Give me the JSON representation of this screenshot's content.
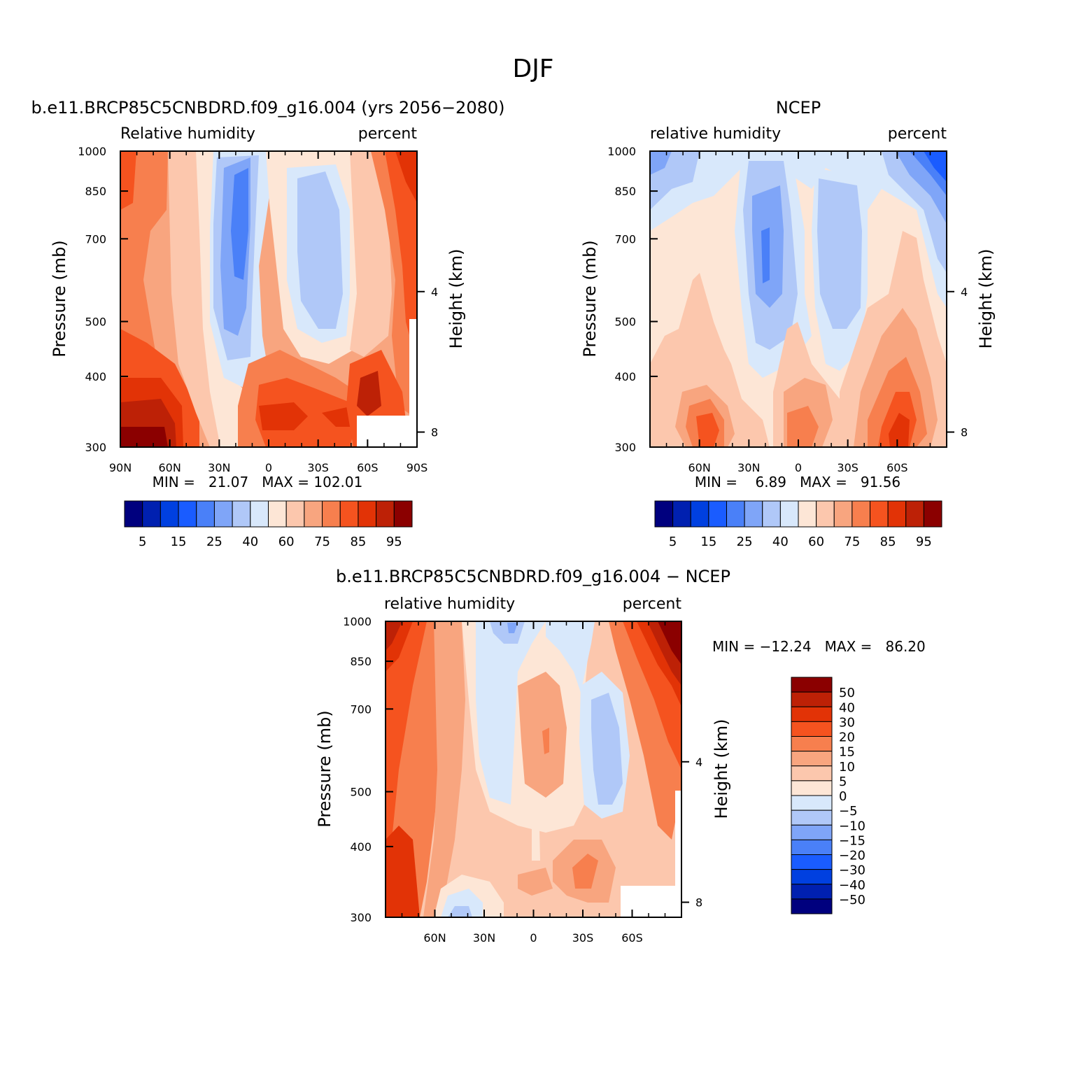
{
  "page_title": "DJF",
  "chart_data": [
    {
      "type": "heatmap",
      "id": "model",
      "title": "b.e11.BRCP85C5CNBDRD.f09_g16.004 (yrs 2056-2080)",
      "left_label": "Relative humidity",
      "right_label": "percent",
      "ylabel": "Pressure (mb)",
      "ylabel_right": "Height (km)",
      "x_ticks": [
        "90N",
        "60N",
        "30N",
        "0",
        "30S",
        "60S",
        "90S"
      ],
      "x_tick_lat": [
        90,
        60,
        30,
        0,
        -30,
        -60,
        -90
      ],
      "xlim": [
        90,
        -90
      ],
      "y_ticks": [
        300,
        400,
        500,
        700,
        850,
        1000
      ],
      "ylim": [
        1000,
        300
      ],
      "y_scale": "log",
      "height_ticks_km": [
        8,
        4
      ],
      "min_text": "MIN =   21.07   MAX = 102.01",
      "min": 21.07,
      "max": 102.01,
      "colorbar_labels": [
        "5",
        "15",
        "25",
        "40",
        "60",
        "75",
        "85",
        "95"
      ],
      "colorbar_colors": [
        "#00007e",
        "#0020b0",
        "#0040e0",
        "#1a5cff",
        "#4a80f8",
        "#7fa5f8",
        "#b0c8f8",
        "#d8e8fb",
        "#fde6d6",
        "#fcc7ad",
        "#f8a57f",
        "#f77f4e",
        "#f5531f",
        "#e23306",
        "#bd2106",
        "#8b0000"
      ]
    },
    {
      "type": "heatmap",
      "id": "ncep",
      "title": "NCEP",
      "left_label": "relative humidity",
      "right_label": "percent",
      "ylabel": "Pressure (mb)",
      "ylabel_right": "Height (km)",
      "x_ticks": [
        "60N",
        "30N",
        "0",
        "30S",
        "60S"
      ],
      "x_tick_lat": [
        60,
        30,
        0,
        -30,
        -60
      ],
      "xlim": [
        90,
        -90
      ],
      "y_ticks": [
        300,
        400,
        500,
        700,
        850,
        1000
      ],
      "ylim": [
        1000,
        300
      ],
      "y_scale": "log",
      "height_ticks_km": [
        8,
        4
      ],
      "min_text": "MIN =    6.89   MAX =   91.56",
      "min": 6.89,
      "max": 91.56,
      "colorbar_labels": [
        "5",
        "15",
        "25",
        "40",
        "60",
        "75",
        "85",
        "95"
      ]
    },
    {
      "type": "heatmap",
      "id": "diff",
      "title": "b.e11.BRCP85C5CNBDRD.f09_g16.004 - NCEP",
      "left_label": "relative humidity",
      "right_label": "percent",
      "ylabel": "Pressure (mb)",
      "ylabel_right": "Height (km)",
      "x_ticks": [
        "60N",
        "30N",
        "0",
        "30S",
        "60S"
      ],
      "x_tick_lat": [
        60,
        30,
        0,
        -30,
        -60
      ],
      "xlim": [
        90,
        -90
      ],
      "y_ticks": [
        300,
        400,
        500,
        700,
        850,
        1000
      ],
      "ylim": [
        1000,
        300
      ],
      "y_scale": "log",
      "height_ticks_km": [
        8,
        4
      ],
      "min_text": "MIN = -12.24   MAX =   86.20",
      "min": -12.24,
      "max": 86.2,
      "colorbar_labels": [
        "50",
        "40",
        "30",
        "20",
        "15",
        "10",
        "5",
        "0",
        "-5",
        "-10",
        "-15",
        "-20",
        "-30",
        "-40",
        "-50"
      ],
      "colorbar_colors": [
        "#8b0000",
        "#bd2106",
        "#e23306",
        "#f5531f",
        "#f77f4e",
        "#f8a57f",
        "#fcc7ad",
        "#fde6d6",
        "#d8e8fb",
        "#b0c8f8",
        "#7fa5f8",
        "#4a80f8",
        "#1a5cff",
        "#0040e0",
        "#0020b0",
        "#00007e"
      ]
    }
  ]
}
